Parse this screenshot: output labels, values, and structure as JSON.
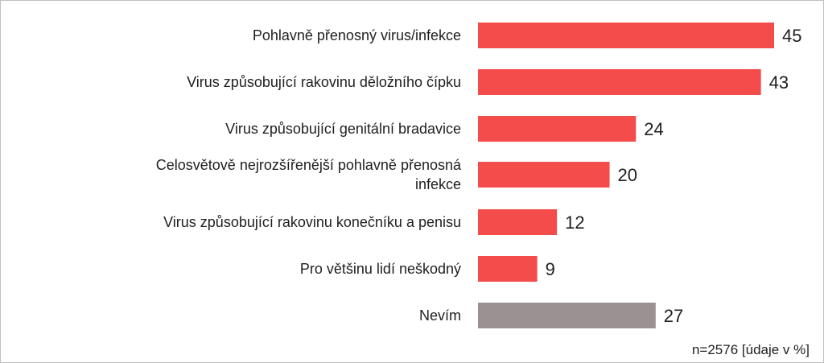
{
  "chart_data": {
    "type": "bar",
    "orientation": "horizontal",
    "categories": [
      "Pohlavně přenosný virus/infekce",
      "Virus způsobující rakovinu děložního čípku",
      "Virus způsobující genitální bradavice",
      "Celosvětově nejrozšířenější pohlavně přenosná infekce",
      "Virus způsobující rakovinu konečníku a penisu",
      "Pro většinu lidí neškodný",
      "Nevím"
    ],
    "values": [
      45,
      43,
      24,
      20,
      12,
      9,
      27
    ],
    "bar_colors": [
      "#f44b4b",
      "#f44b4b",
      "#f44b4b",
      "#f44b4b",
      "#f44b4b",
      "#f44b4b",
      "#9b9193"
    ],
    "xlim": [
      0,
      45
    ],
    "grid": false,
    "legend": "none"
  },
  "note": "n=2576 [údaje v %]"
}
